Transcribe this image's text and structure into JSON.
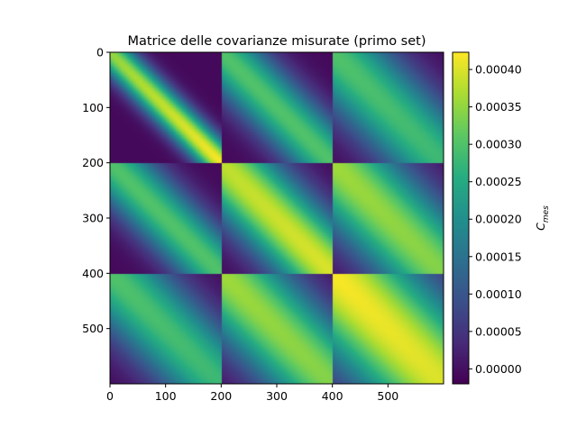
{
  "chart_data": {
    "type": "heatmap",
    "title": "Matrice delle covarianze misurate (primo set)",
    "xlabel": "",
    "ylabel": "",
    "x_ticks": [
      0,
      100,
      200,
      300,
      400,
      500
    ],
    "y_ticks": [
      0,
      100,
      200,
      300,
      400,
      500
    ],
    "xlim": [
      0,
      600
    ],
    "ylim": [
      600,
      0
    ],
    "matrix_size": 600,
    "blocks": 3,
    "block_size": 200,
    "colormap": "viridis",
    "colorbar": {
      "label_base": "C",
      "label_sub": "mes",
      "ticks": [
        "0.00000",
        "0.00005",
        "0.00010",
        "0.00015",
        "0.00020",
        "0.00025",
        "0.00030",
        "0.00035",
        "0.00040"
      ],
      "tick_values": [
        0.0,
        5e-05,
        0.0001,
        0.00015,
        0.0002,
        0.00025,
        0.0003,
        0.00035,
        0.0004
      ],
      "min": -2e-05,
      "max": 0.000423
    },
    "block_profiles": [
      [
        {
          "diag_peak": 0.00035,
          "diag_end": 0.00042,
          "falloff": 30
        },
        {
          "diag_peak": 0.0003,
          "diag_end": 0.0003,
          "falloff": 55
        },
        {
          "diag_peak": 0.0003,
          "diag_end": 0.00028,
          "falloff": 75
        }
      ],
      [
        {
          "diag_peak": 0.0003,
          "diag_end": 0.0003,
          "falloff": 55
        },
        {
          "diag_peak": 0.00038,
          "diag_end": 0.0004,
          "falloff": 70
        },
        {
          "diag_peak": 0.00036,
          "diag_end": 0.00034,
          "falloff": 85
        }
      ],
      [
        {
          "diag_peak": 0.0003,
          "diag_end": 0.00028,
          "falloff": 75
        },
        {
          "diag_peak": 0.00036,
          "diag_end": 0.00034,
          "falloff": 85
        },
        {
          "diag_peak": 0.00042,
          "diag_end": 0.0004,
          "falloff": 110
        }
      ]
    ]
  }
}
